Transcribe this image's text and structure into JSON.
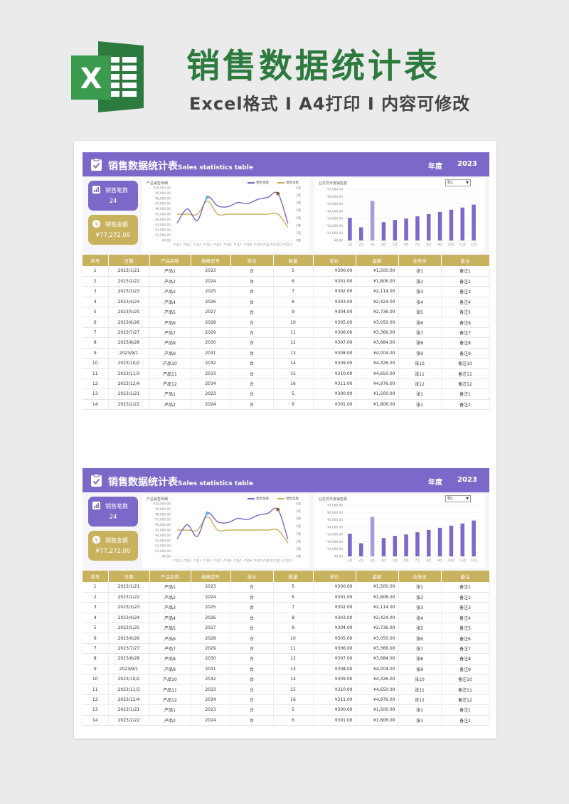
{
  "banner": {
    "title": "销售数据统计表",
    "subtitle": "Excel格式 I A4打印 I 内容可修改"
  },
  "colors": {
    "purple": "#7b68c8",
    "gold": "#c9b25e",
    "green": "#2d7a3e"
  },
  "header": {
    "title": "销售数据统计表",
    "title_en": "Sales statistics table",
    "year_label": "年度",
    "year_value": "2023"
  },
  "kpi": {
    "count_label": "销售笔数",
    "count_value": "24",
    "amount_label": "销售金额",
    "amount_value": "¥77,272.00"
  },
  "chart_data": [
    {
      "type": "line",
      "title": "产品销售明细",
      "categories": [
        "产品1",
        "产品2",
        "产品3",
        "产品4",
        "产品5",
        "产品6",
        "产品7",
        "产品8",
        "产品9",
        "产品10",
        "产品11",
        "产品12"
      ],
      "y_ticks": [
        "¥10,000.00",
        "¥9,000.00",
        "¥8,000.00",
        "¥7,000.00",
        "¥6,000.00",
        "¥5,000.00",
        "¥4,000.00",
        "¥3,000.00",
        "¥2,000.00",
        "¥1,000.00",
        "¥0.00"
      ],
      "y2_ticks": [
        "4笔",
        "3笔",
        "3笔",
        "2笔",
        "2笔",
        "1笔",
        "1笔",
        "0笔"
      ],
      "ylim": [
        0,
        10000
      ],
      "y2lim": [
        0,
        4
      ],
      "series": [
        {
          "name": "销售金额",
          "color": "#7b68c8",
          "values": [
            3300,
            6000,
            3800,
            8200,
            6600,
            6400,
            7200,
            7000,
            7800,
            8200,
            8900,
            3200
          ]
        },
        {
          "name": "销售笔数",
          "color": "#c9b25e",
          "values": [
            2,
            2,
            2,
            3,
            2,
            2,
            2,
            2,
            2,
            2,
            2,
            1
          ]
        }
      ]
    },
    {
      "type": "bar",
      "title": "业务员年度销售额",
      "select_value": "张1",
      "categories": [
        "1月",
        "2月",
        "3月",
        "4月",
        "5月",
        "6月",
        "7月",
        "8月",
        "9月",
        "10月",
        "11月",
        "12月"
      ],
      "y_ticks": [
        "¥7,000.00",
        "¥6,000.00",
        "¥5,000.00",
        "¥4,000.00",
        "¥3,000.00",
        "¥2,000.00",
        "¥1,000.00",
        "¥0.00"
      ],
      "ylim": [
        0,
        7000
      ],
      "values": [
        3100,
        1800,
        5400,
        2500,
        2800,
        3000,
        3300,
        3600,
        3900,
        4200,
        4500,
        4900
      ],
      "highlight_index": 2
    }
  ],
  "table": {
    "headers": [
      "序号",
      "日期",
      "产品名称",
      "规格型号",
      "单位",
      "数量",
      "单价",
      "金额",
      "业务员",
      "备注"
    ],
    "rows": [
      [
        "1",
        "2023/1/21",
        "产品1",
        "2023",
        "台",
        "5",
        "¥300.00",
        "¥1,500.00",
        "张1",
        "备注1"
      ],
      [
        "2",
        "2023/2/22",
        "产品2",
        "2024",
        "台",
        "6",
        "¥301.00",
        "¥1,806.00",
        "张2",
        "备注2"
      ],
      [
        "3",
        "2023/3/23",
        "产品3",
        "2025",
        "台",
        "7",
        "¥302.00",
        "¥2,114.00",
        "张3",
        "备注3"
      ],
      [
        "4",
        "2023/4/24",
        "产品4",
        "2026",
        "台",
        "8",
        "¥303.00",
        "¥2,424.00",
        "张4",
        "备注4"
      ],
      [
        "5",
        "2023/5/25",
        "产品5",
        "2027",
        "台",
        "9",
        "¥304.00",
        "¥2,736.00",
        "张5",
        "备注5"
      ],
      [
        "6",
        "2023/6/26",
        "产品6",
        "2028",
        "台",
        "10",
        "¥305.00",
        "¥3,050.00",
        "张6",
        "备注6"
      ],
      [
        "7",
        "2023/7/27",
        "产品7",
        "2029",
        "台",
        "11",
        "¥306.00",
        "¥3,366.00",
        "张7",
        "备注7"
      ],
      [
        "8",
        "2023/8/28",
        "产品8",
        "2030",
        "台",
        "12",
        "¥307.00",
        "¥3,684.00",
        "张8",
        "备注8"
      ],
      [
        "9",
        "2023/9/1",
        "产品9",
        "2031",
        "台",
        "13",
        "¥308.00",
        "¥4,004.00",
        "张9",
        "备注9"
      ],
      [
        "10",
        "2023/10/2",
        "产品10",
        "2032",
        "台",
        "14",
        "¥309.00",
        "¥4,326.00",
        "张10",
        "备注10"
      ],
      [
        "11",
        "2023/11/3",
        "产品11",
        "2033",
        "台",
        "15",
        "¥310.00",
        "¥4,650.00",
        "张11",
        "备注11"
      ],
      [
        "12",
        "2023/12/4",
        "产品12",
        "2034",
        "台",
        "16",
        "¥311.00",
        "¥4,976.00",
        "张12",
        "备注12"
      ],
      [
        "13",
        "2023/1/21",
        "产品1",
        "2023",
        "台",
        "5",
        "¥300.00",
        "¥1,500.00",
        "张1",
        "备注1"
      ],
      [
        "14",
        "2023/2/22",
        "产品2",
        "2024",
        "台",
        "6",
        "¥301.00",
        "¥1,806.00",
        "张1",
        "备注2"
      ]
    ]
  }
}
